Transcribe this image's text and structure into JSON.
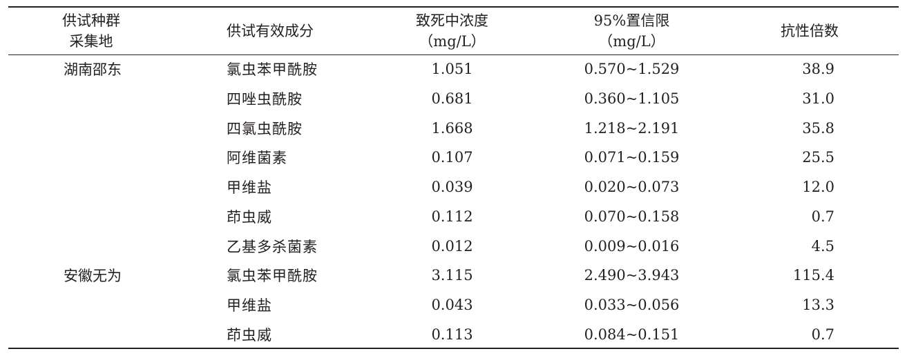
{
  "headers": {
    "site": [
      "供试种群",
      "采集地"
    ],
    "ingredient": [
      "供试有效成分"
    ],
    "lc50": [
      "致死中浓度",
      "（mg/L）"
    ],
    "ci": [
      "95%置信限",
      "（mg/L）"
    ],
    "rr": [
      "抗性倍数"
    ]
  },
  "rows": [
    {
      "site": "湖南邵东",
      "ingredient": "氯虫苯甲酰胺",
      "lc50": "1.051",
      "ci": "0.570~1.529",
      "rr": "38.9"
    },
    {
      "site": "",
      "ingredient": "四唑虫酰胺",
      "lc50": "0.681",
      "ci": "0.360~1.105",
      "rr": "31.0"
    },
    {
      "site": "",
      "ingredient": "四氯虫酰胺",
      "lc50": "1.668",
      "ci": "1.218~2.191",
      "rr": "35.8"
    },
    {
      "site": "",
      "ingredient": "阿维菌素",
      "lc50": "0.107",
      "ci": "0.071~0.159",
      "rr": "25.5"
    },
    {
      "site": "",
      "ingredient": "甲维盐",
      "lc50": "0.039",
      "ci": "0.020~0.073",
      "rr": "12.0"
    },
    {
      "site": "",
      "ingredient": "茚虫威",
      "lc50": "0.112",
      "ci": "0.070~0.158",
      "rr": "0.7"
    },
    {
      "site": "",
      "ingredient": "乙基多杀菌素",
      "lc50": "0.012",
      "ci": "0.009~0.016",
      "rr": "4.5"
    },
    {
      "site": "安徽无为",
      "ingredient": "氯虫苯甲酰胺",
      "lc50": "3.115",
      "ci": "2.490~3.943",
      "rr": "115.4"
    },
    {
      "site": "",
      "ingredient": "甲维盐",
      "lc50": "0.043",
      "ci": "0.033~0.056",
      "rr": "13.3"
    },
    {
      "site": "",
      "ingredient": "茚虫威",
      "lc50": "0.113",
      "ci": "0.084~0.151",
      "rr": "0.7"
    }
  ]
}
